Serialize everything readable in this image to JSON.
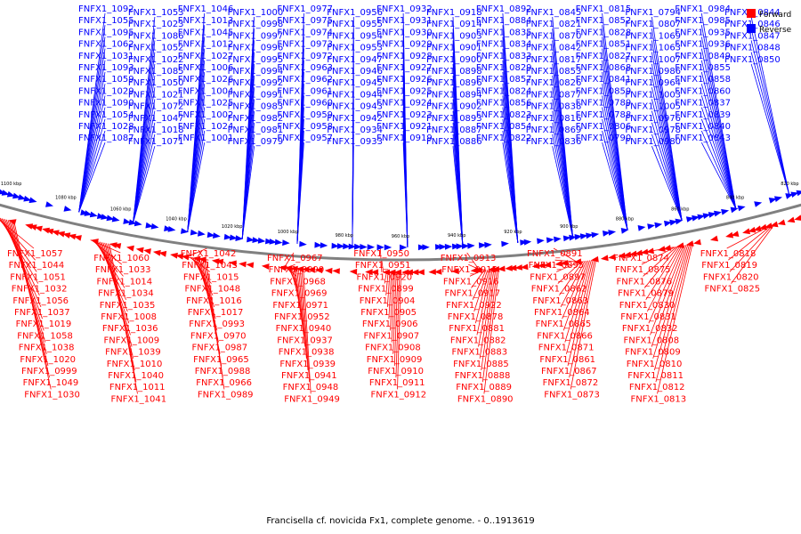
{
  "caption": "Francisella cf. novicida Fx1, complete genome. - 0..1913619",
  "legend": [
    {
      "label": "Forward",
      "color": "#ff0000"
    },
    {
      "label": "Reverse",
      "color": "#0000ff"
    }
  ],
  "colors": {
    "forward": "#ff0000",
    "reverse": "#0000ff",
    "backbone": "#808080"
  },
  "ticks": [
    "1100 kbp",
    "1080 kbp",
    "1060 kbp",
    "1040 kbp",
    "1020 kbp",
    "1000 kbp",
    "980 kbp",
    "960 kbp",
    "940 kbp",
    "920 kbp",
    "900 kbp",
    "880 kbp",
    "860 kbp",
    "840 kbp",
    "820 kbp"
  ],
  "reverse_labels": [
    "FNFX1_1092",
    "FNFX1_1055",
    "FNFX1_1095",
    "FNFX1_1062",
    "FNFX1_1031",
    "FNFX1_1093",
    "FNFX1_1059",
    "FNFX1_1029",
    "FNFX1_1090",
    "FNFX1_1054",
    "FNFX1_1028",
    "FNFX1_1087",
    "FNFX1_1053",
    "FNFX1_1023",
    "FNFX1_1086",
    "FNFX1_1052",
    "FNFX1_1022",
    "FNFX1_1085",
    "FNFX1_1050",
    "FNFX1_1021",
    "FNFX1_1072",
    "FNFX1_1047",
    "FNFX1_1018",
    "FNFX1_1071",
    "FNFX1_1046",
    "FNFX1_1013",
    "FNFX1_1045",
    "FNFX1_1012",
    "FNFX1_1027",
    "FNFX1_1006",
    "FNFX1_1026",
    "FNFX1_1004",
    "FNFX1_1025",
    "FNFX1_1002",
    "FNFX1_1024",
    "FNFX1_1001",
    "FNFX1_1000",
    "FNFX1_0998",
    "FNFX1_0997",
    "FNFX1_0996",
    "FNFX1_0995",
    "FNFX1_0994",
    "FNFX1_0992",
    "FNFX1_0991",
    "FNFX1_0983",
    "FNFX1_0982",
    "FNFX1_0981",
    "FNFX1_0979",
    "FNFX1_0977",
    "FNFX1_0975",
    "FNFX1_0974",
    "FNFX1_0973",
    "FNFX1_0972",
    "FNFX1_0963",
    "FNFX1_0962",
    "FNFX1_0961",
    "FNFX1_0960",
    "FNFX1_0959",
    "FNFX1_0958",
    "FNFX1_0957",
    "FNFX1_0956",
    "FNFX1_0955",
    "FNFX1_0954",
    "FNFX1_0953",
    "FNFX1_0947",
    "FNFX1_0946",
    "FNFX1_0945",
    "FNFX1_0944",
    "FNFX1_0943",
    "FNFX1_0942",
    "FNFX1_0934",
    "FNFX1_0933",
    "FNFX1_0932",
    "FNFX1_0931",
    "FNFX1_0930",
    "FNFX1_0929",
    "FNFX1_0928",
    "FNFX1_0927",
    "FNFX1_0926",
    "FNFX1_0925",
    "FNFX1_0924",
    "FNFX1_0923",
    "FNFX1_0921",
    "FNFX1_0919",
    "FNFX1_0918",
    "FNFX1_0914",
    "FNFX1_0903",
    "FNFX1_0901",
    "FNFX1_0900",
    "FNFX1_0898",
    "FNFX1_0896",
    "FNFX1_0894",
    "FNFX1_0902",
    "FNFX1_0893",
    "FNFX1_0887",
    "FNFX1_0886",
    "FNFX1_0892",
    "FNFX1_0884",
    "FNFX1_0835",
    "FNFX1_0834",
    "FNFX1_0833",
    "FNFX1_0829",
    "FNFX1_0857",
    "FNFX1_0824",
    "FNFX1_0856",
    "FNFX1_0823",
    "FNFX1_0854",
    "FNFX1_0822",
    "FNFX1_0845",
    "FNFX1_0821",
    "FNFX1_0870",
    "FNFX1_0842",
    "FNFX1_0817",
    "FNFX1_0853",
    "FNFX1_0826",
    "FNFX1_0877",
    "FNFX1_0838",
    "FNFX1_0816",
    "FNFX1_0869",
    "FNFX1_0836",
    "FNFX1_0815",
    "FNFX1_0852",
    "FNFX1_0828",
    "FNFX1_0851",
    "FNFX1_0827",
    "FNFX1_0868",
    "FNFX1_0841",
    "FNFX1_0859",
    "FNFX1_0789",
    "FNFX1_0788",
    "FNFX1_0806",
    "FNFX1_0790",
    "FNFX1_0794",
    "FNFX1_0807",
    "FNFX1_1069",
    "FNFX1_1063",
    "FNFX1_1007",
    "FNFX1_0986",
    "FNFX1_0964",
    "FNFX1_1003",
    "FNFX1_1005",
    "FNFX1_0976",
    "FNFX1_0978",
    "FNFX1_0980",
    "FNFX1_0984",
    "FNFX1_0985",
    "FNFX1_0935",
    "FNFX1_0936",
    "FNFX1_0849",
    "FNFX1_0855",
    "FNFX1_0858",
    "FNFX1_0860",
    "FNFX1_0837",
    "FNFX1_0839",
    "FNFX1_0840",
    "FNFX1_0843",
    "FNFX1_0844",
    "FNFX1_0846",
    "FNFX1_0847",
    "FNFX1_0848",
    "FNFX1_0850"
  ],
  "forward_labels": [
    "FNFX1_1057",
    "FNFX1_1044",
    "FNFX1_1051",
    "FNFX1_1032",
    "FNFX1_1056",
    "FNFX1_1037",
    "FNFX1_1019",
    "FNFX1_1058",
    "FNFX1_1038",
    "FNFX1_1020",
    "FNFX1_0999",
    "FNFX1_1049",
    "FNFX1_1030",
    "FNFX1_1060",
    "FNFX1_1033",
    "FNFX1_1014",
    "FNFX1_1034",
    "FNFX1_1035",
    "FNFX1_1008",
    "FNFX1_1036",
    "FNFX1_1009",
    "FNFX1_1039",
    "FNFX1_1010",
    "FNFX1_1040",
    "FNFX1_1011",
    "FNFX1_1041",
    "FNFX1_1042",
    "FNFX1_1043",
    "FNFX1_1015",
    "FNFX1_1048",
    "FNFX1_1016",
    "FNFX1_1017",
    "FNFX1_0993",
    "FNFX1_0970",
    "FNFX1_0987",
    "FNFX1_0965",
    "FNFX1_0988",
    "FNFX1_0966",
    "FNFX1_0989",
    "FNFX1_0967",
    "FNFX1_0990",
    "FNFX1_0968",
    "FNFX1_0969",
    "FNFX1_0971",
    "FNFX1_0952",
    "FNFX1_0940",
    "FNFX1_0937",
    "FNFX1_0938",
    "FNFX1_0939",
    "FNFX1_0941",
    "FNFX1_0948",
    "FNFX1_0949",
    "FNFX1_0950",
    "FNFX1_0951",
    "FNFX1_0920",
    "FNFX1_0899",
    "FNFX1_0904",
    "FNFX1_0905",
    "FNFX1_0906",
    "FNFX1_0907",
    "FNFX1_0908",
    "FNFX1_0909",
    "FNFX1_0910",
    "FNFX1_0911",
    "FNFX1_0912",
    "FNFX1_0913",
    "FNFX1_0915",
    "FNFX1_0916",
    "FNFX1_0917",
    "FNFX1_0922",
    "FNFX1_0878",
    "FNFX1_0881",
    "FNFX1_0882",
    "FNFX1_0883",
    "FNFX1_0885",
    "FNFX1_0888",
    "FNFX1_0889",
    "FNFX1_0890",
    "FNFX1_0891",
    "FNFX1_0895",
    "FNFX1_0897",
    "FNFX1_0862",
    "FNFX1_0863",
    "FNFX1_0864",
    "FNFX1_0865",
    "FNFX1_0866",
    "FNFX1_0871",
    "FNFX1_0861",
    "FNFX1_0867",
    "FNFX1_0872",
    "FNFX1_0873",
    "FNFX1_0874",
    "FNFX1_0875",
    "FNFX1_0876",
    "FNFX1_0879",
    "FNFX1_0830",
    "FNFX1_0831",
    "FNFX1_0832",
    "FNFX1_0808",
    "FNFX1_0809",
    "FNFX1_0810",
    "FNFX1_0811",
    "FNFX1_0812",
    "FNFX1_0813",
    "FNFX1_0818",
    "FNFX1_0819",
    "FNFX1_0820",
    "FNFX1_0825"
  ]
}
